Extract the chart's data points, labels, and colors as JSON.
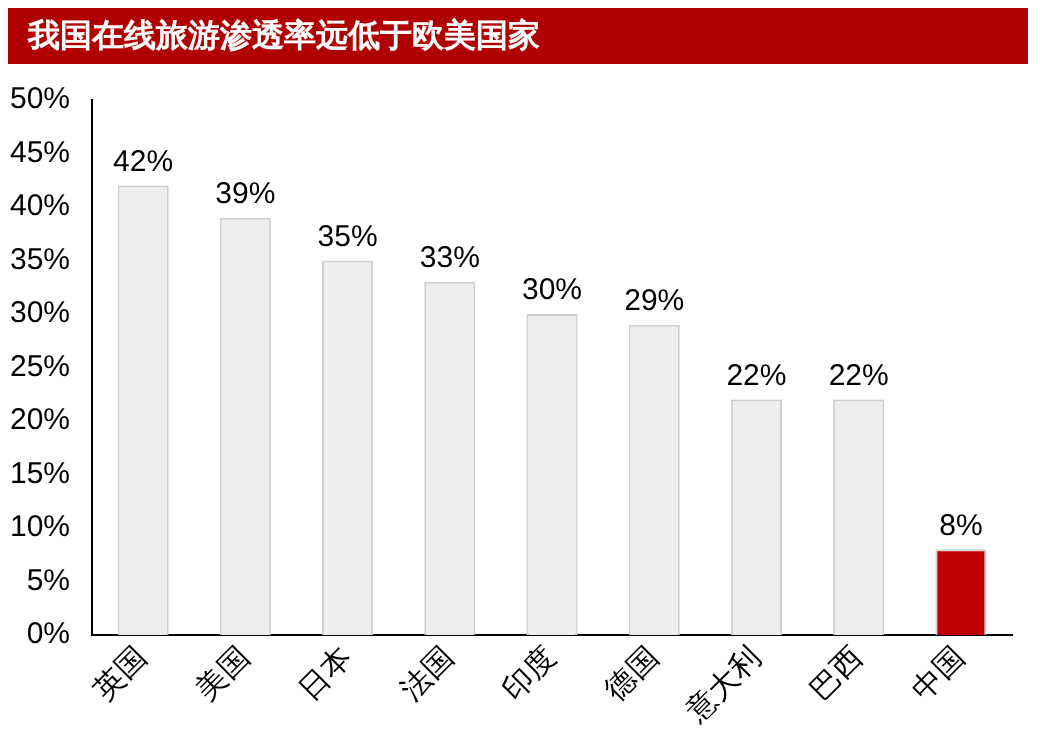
{
  "chart_data": {
    "type": "bar",
    "title": "我国在线旅游渗透率远低于欧美国家",
    "categories": [
      "英国",
      "美国",
      "日本",
      "法国",
      "印度",
      "德国",
      "意大利",
      "巴西",
      "中国"
    ],
    "values": [
      42,
      39,
      35,
      33,
      30,
      29,
      22,
      22,
      8
    ],
    "colors": [
      "#eeeeee",
      "#eeeeee",
      "#eeeeee",
      "#eeeeee",
      "#eeeeee",
      "#eeeeee",
      "#eeeeee",
      "#eeeeee",
      "#c00000"
    ],
    "value_labels": [
      "42%",
      "39%",
      "35%",
      "33%",
      "30%",
      "29%",
      "22%",
      "22%",
      "8%"
    ],
    "ylim": [
      0,
      50
    ],
    "yticks": [
      {
        "value": 0,
        "label": "0%"
      },
      {
        "value": 5,
        "label": "5%"
      },
      {
        "value": 10,
        "label": "10%"
      },
      {
        "value": 15,
        "label": "15%"
      },
      {
        "value": 20,
        "label": "20%"
      },
      {
        "value": 25,
        "label": "25%"
      },
      {
        "value": 30,
        "label": "30%"
      },
      {
        "value": 35,
        "label": "35%"
      },
      {
        "value": 40,
        "label": "40%"
      },
      {
        "value": 45,
        "label": "45%"
      },
      {
        "value": 50,
        "label": "50%"
      }
    ],
    "grid": false,
    "legend": false
  }
}
